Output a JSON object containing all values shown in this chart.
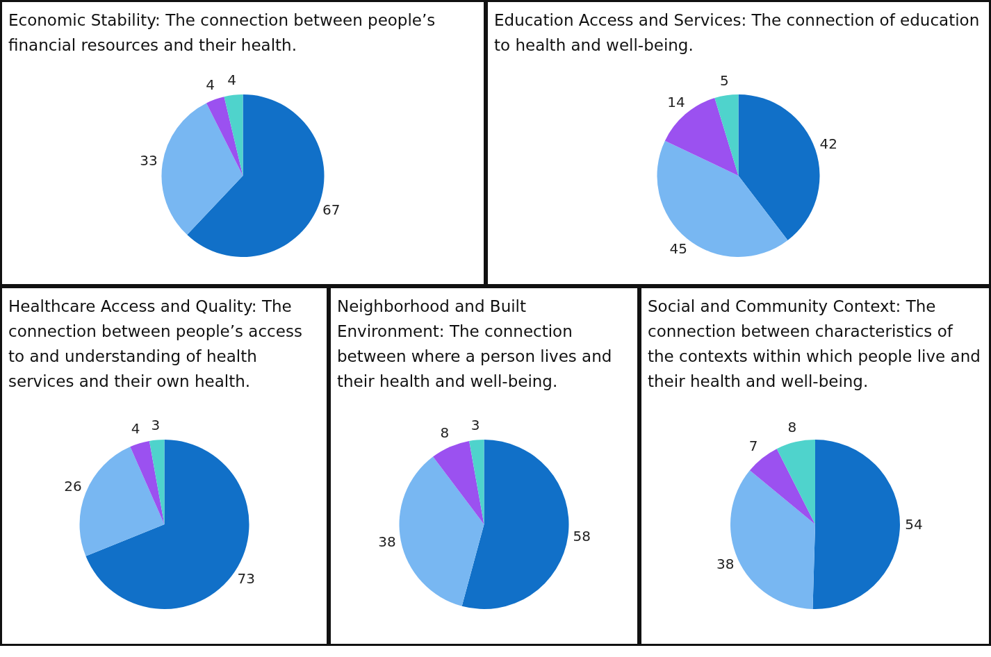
{
  "chart_data": [
    {
      "type": "pie",
      "title": "Economic Stability: The connection between people’s financial resources and their health.",
      "categories": [
        null,
        null,
        null,
        null
      ],
      "values": [
        67,
        33,
        4,
        4
      ],
      "colors": [
        "#1170c8",
        "#78b7f2",
        "#9b51f0",
        "#4fd3cc"
      ],
      "data_labels": true,
      "legend": false
    },
    {
      "type": "pie",
      "title": "Education Access and Services: The connection of education to health and well-being.",
      "categories": [
        null,
        null,
        null,
        null
      ],
      "values": [
        42,
        45,
        14,
        5
      ],
      "colors": [
        "#1170c8",
        "#78b7f2",
        "#9b51f0",
        "#4fd3cc"
      ],
      "data_labels": true,
      "legend": false
    },
    {
      "type": "pie",
      "title": "Healthcare Access and Quality: The connection between people’s access to and understanding of health services and their own health.",
      "categories": [
        null,
        null,
        null,
        null
      ],
      "values": [
        73,
        26,
        4,
        3
      ],
      "colors": [
        "#1170c8",
        "#78b7f2",
        "#9b51f0",
        "#4fd3cc"
      ],
      "data_labels": true,
      "legend": false
    },
    {
      "type": "pie",
      "title": "Neighborhood and Built Environment: The connection between where a person lives and their health and well-being.",
      "categories": [
        null,
        null,
        null,
        null
      ],
      "values": [
        58,
        38,
        8,
        3
      ],
      "colors": [
        "#1170c8",
        "#78b7f2",
        "#9b51f0",
        "#4fd3cc"
      ],
      "data_labels": true,
      "legend": false
    },
    {
      "type": "pie",
      "title": "Social and Community Context: The connection between characteristics of the contexts within which people live and their health and well-being.",
      "categories": [
        null,
        null,
        null,
        null
      ],
      "values": [
        54,
        38,
        7,
        8
      ],
      "colors": [
        "#1170c8",
        "#78b7f2",
        "#9b51f0",
        "#4fd3cc"
      ],
      "data_labels": true,
      "legend": false
    }
  ]
}
